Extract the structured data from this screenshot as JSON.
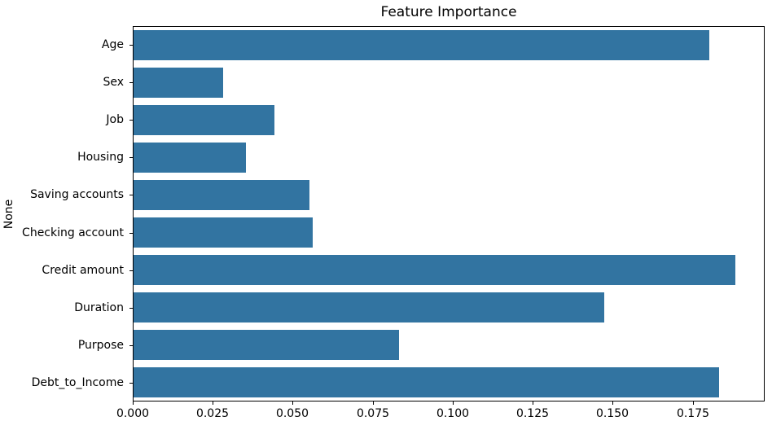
{
  "figure": {
    "background": "#ffffff",
    "text_color": "#000000"
  },
  "chart_data": {
    "type": "bar",
    "orientation": "horizontal",
    "title": "Feature Importance",
    "xlabel": "",
    "ylabel": "None",
    "categories": [
      "Age",
      "Sex",
      "Job",
      "Housing",
      "Saving accounts",
      "Checking account",
      "Credit amount",
      "Duration",
      "Purpose",
      "Debt_to_Income"
    ],
    "values": [
      0.18,
      0.028,
      0.044,
      0.035,
      0.055,
      0.056,
      0.188,
      0.147,
      0.083,
      0.183
    ],
    "xlim": [
      0,
      0.1975
    ],
    "xtick_values": [
      0.0,
      0.025,
      0.05,
      0.075,
      0.1,
      0.125,
      0.15,
      0.175
    ],
    "xtick_labels": [
      "0.000",
      "0.025",
      "0.050",
      "0.075",
      "0.100",
      "0.125",
      "0.150",
      "0.175"
    ],
    "bar_color": "#3274a1",
    "grid": false,
    "legend": null
  }
}
